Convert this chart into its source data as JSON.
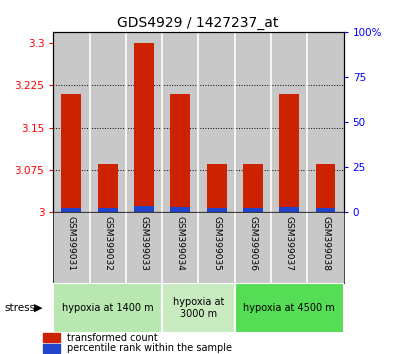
{
  "title": "GDS4929 / 1427237_at",
  "samples": [
    "GSM399031",
    "GSM399032",
    "GSM399033",
    "GSM399034",
    "GSM399035",
    "GSM399036",
    "GSM399037",
    "GSM399038"
  ],
  "red_values": [
    3.21,
    3.085,
    3.3,
    3.21,
    3.085,
    3.085,
    3.21,
    3.085
  ],
  "blue_values": [
    0.007,
    0.008,
    0.012,
    0.009,
    0.008,
    0.008,
    0.009,
    0.008
  ],
  "ylim_left": [
    3.0,
    3.32
  ],
  "ylim_right": [
    0,
    100
  ],
  "yticks_left": [
    3.0,
    3.075,
    3.15,
    3.225,
    3.3
  ],
  "yticks_right": [
    0,
    25,
    50,
    75,
    100
  ],
  "ytick_labels_left": [
    "3",
    "3.075",
    "3.15",
    "3.225",
    "3.3"
  ],
  "ytick_labels_right": [
    "0",
    "25",
    "50",
    "75",
    "100%"
  ],
  "bar_width": 0.55,
  "red_color": "#cc2200",
  "blue_color": "#2244cc",
  "bar_bg_color": "#c8c8c8",
  "legend_labels": [
    "transformed count",
    "percentile rank within the sample"
  ],
  "stress_label": "stress",
  "base_value": 3.0,
  "group_ranges": [
    [
      0,
      2
    ],
    [
      3,
      4
    ],
    [
      5,
      7
    ]
  ],
  "group_labels": [
    "hypoxia at 1400 m",
    "hypoxia at\n3000 m",
    "hypoxia at 4500 m"
  ],
  "group_colors": [
    "#b8e8b0",
    "#c8ecc0",
    "#55dd55"
  ]
}
